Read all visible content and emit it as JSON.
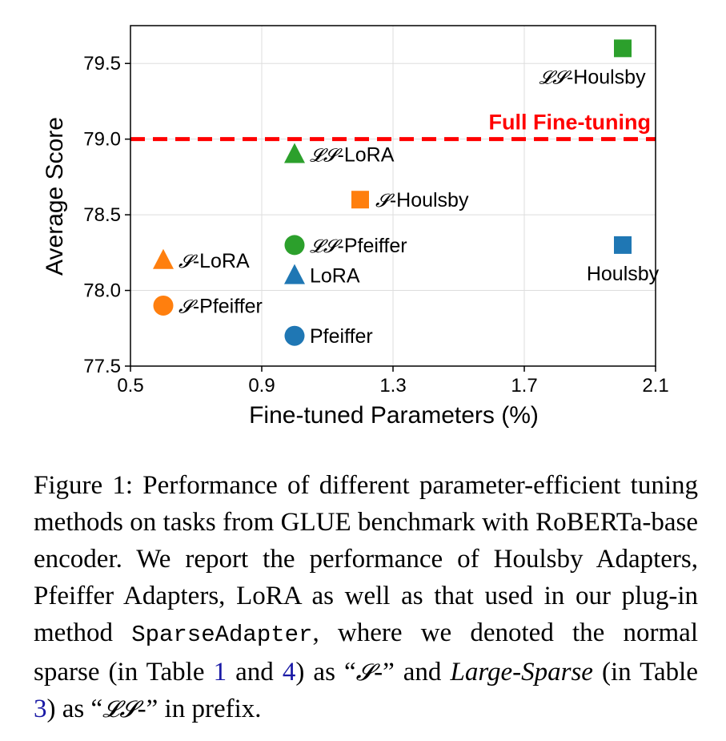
{
  "chart_data": {
    "type": "scatter",
    "xlabel": "Fine-tuned Parameters (%)",
    "ylabel": "Average Score",
    "xlim": [
      0.5,
      2.1
    ],
    "ylim": [
      77.5,
      79.75
    ],
    "xticks": [
      "0.5",
      "0.9",
      "1.3",
      "1.7",
      "2.1"
    ],
    "yticks": [
      "77.5",
      "78.0",
      "78.5",
      "79.0",
      "79.5"
    ],
    "grid": true,
    "reference_line": {
      "y": 79.0,
      "label": "Full Fine-tuning",
      "color": "#ff0000",
      "style": "dashed"
    },
    "points": [
      {
        "prefix": "𝓛𝓢",
        "label": "-Houlsby",
        "x": 2.0,
        "y": 79.6,
        "marker": "square",
        "color": "#2ca02c",
        "label_pos": "below"
      },
      {
        "prefix": "𝓛𝓢",
        "label": "-LoRA",
        "x": 1.0,
        "y": 78.9,
        "marker": "triangle",
        "color": "#2ca02c",
        "label_pos": "right"
      },
      {
        "prefix": "𝓢",
        "label": "-Houlsby",
        "x": 1.2,
        "y": 78.6,
        "marker": "square",
        "color": "#ff7f0e",
        "label_pos": "right"
      },
      {
        "prefix": "𝓛𝓢",
        "label": "-Pfeiffer",
        "x": 1.0,
        "y": 78.3,
        "marker": "circle",
        "color": "#2ca02c",
        "label_pos": "right"
      },
      {
        "prefix": "",
        "label": "Houlsby",
        "x": 2.0,
        "y": 78.3,
        "marker": "square",
        "color": "#1f77b4",
        "label_pos": "below"
      },
      {
        "prefix": "𝓢",
        "label": "-LoRA",
        "x": 0.6,
        "y": 78.2,
        "marker": "triangle",
        "color": "#ff7f0e",
        "label_pos": "right"
      },
      {
        "prefix": "",
        "label": "LoRA",
        "x": 1.0,
        "y": 78.1,
        "marker": "triangle",
        "color": "#1f77b4",
        "label_pos": "right"
      },
      {
        "prefix": "𝓢",
        "label": "-Pfeiffer",
        "x": 0.6,
        "y": 77.9,
        "marker": "circle",
        "color": "#ff7f0e",
        "label_pos": "right"
      },
      {
        "prefix": "",
        "label": "Pfeiffer",
        "x": 1.0,
        "y": 77.7,
        "marker": "circle",
        "color": "#1f77b4",
        "label_pos": "right"
      }
    ]
  },
  "caption": {
    "part1": "Figure 1: Performance of different parameter-efficient tuning methods on tasks from GLUE benchmark with RoBERTa-base encoder. We report the performance of Houlsby Adapters, Pfeiffer Adapters, LoRA as well as that used in our plug-in method ",
    "method": "SparseAdapter",
    "part2": ", where we denoted the normal sparse (in Table ",
    "ref1": "1",
    "part3": " and ",
    "ref2": "4",
    "part4": ") as “",
    "sym1": "𝓢",
    "part5": "-” and ",
    "italic": "Large-Sparse",
    "part6": " (in Table ",
    "ref3": "3",
    "part7": ") as “",
    "sym2": "𝓛𝓢",
    "part8": "-” in prefix."
  }
}
